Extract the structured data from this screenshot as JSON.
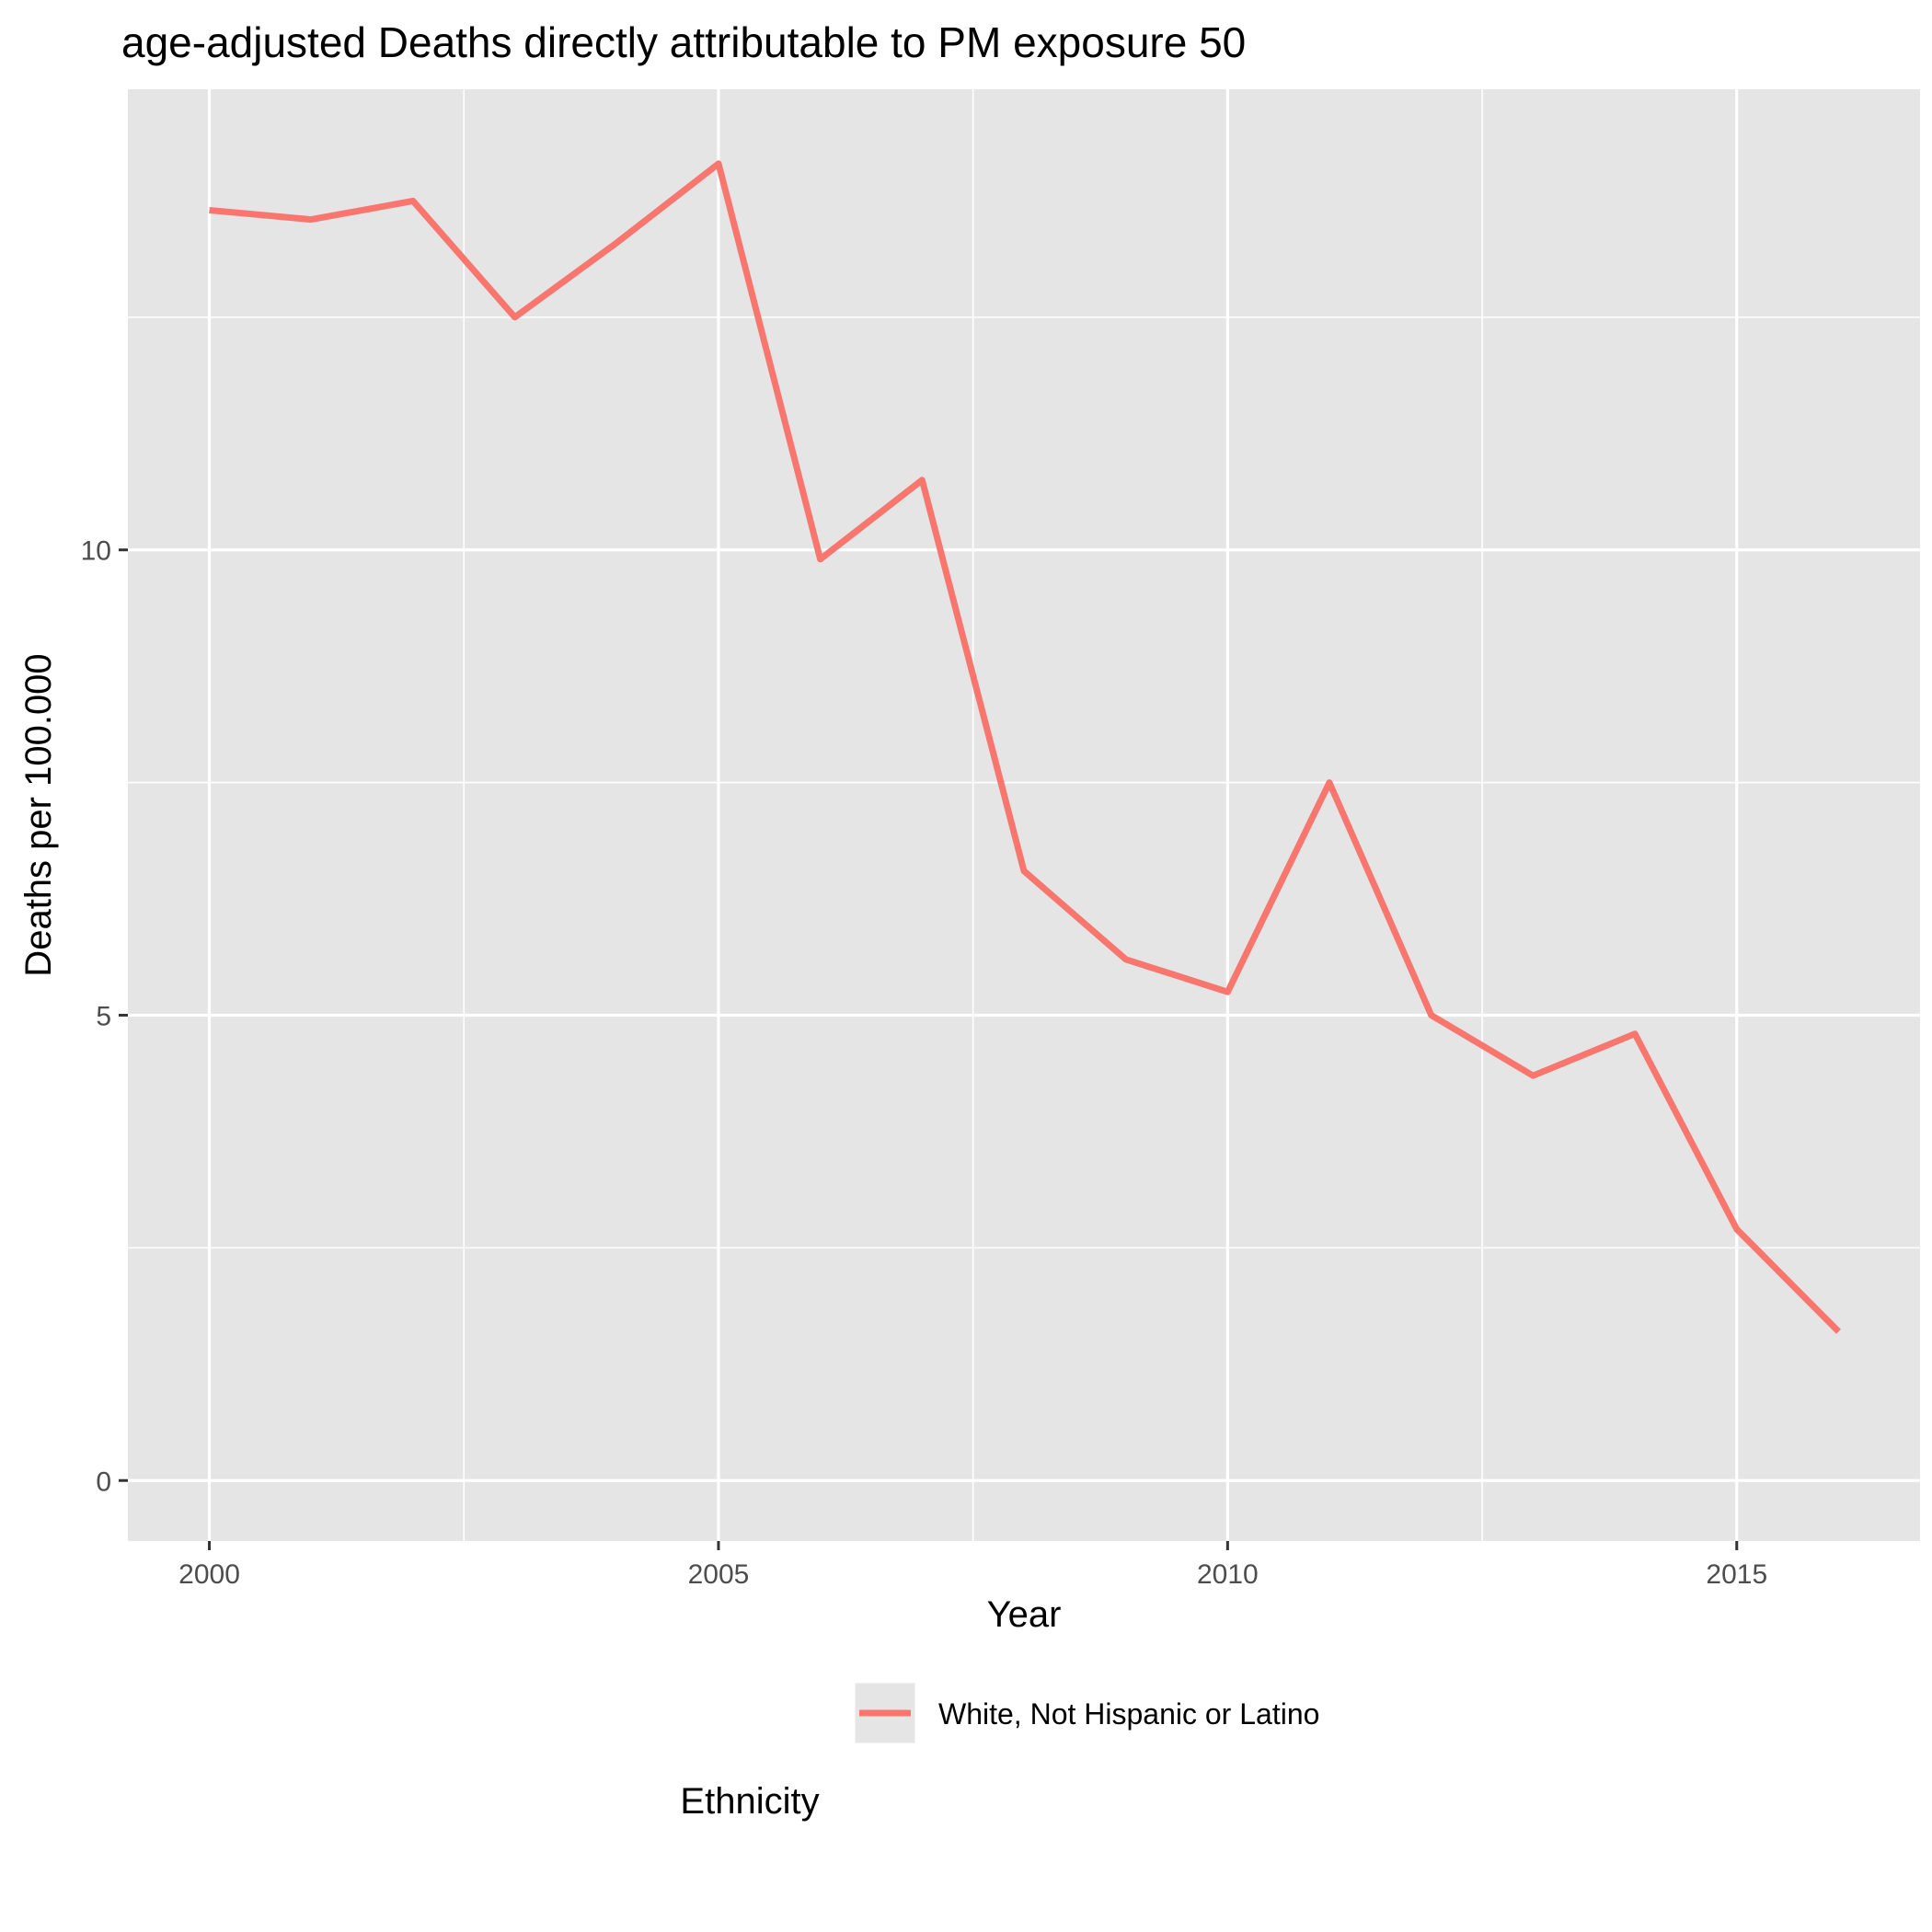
{
  "chart_data": {
    "type": "line",
    "title": "age-adjusted Deaths directly attributable to PM exposure 50",
    "xlabel": "Year",
    "ylabel": "Deaths per 100.000",
    "xlim": [
      1999.2,
      2016.8
    ],
    "ylim": [
      -0.65,
      14.95
    ],
    "x_ticks": [
      2000,
      2005,
      2010,
      2015
    ],
    "y_ticks": [
      0,
      5,
      10
    ],
    "x_minor": [
      2002.5,
      2007.5,
      2012.5
    ],
    "y_minor": [
      2.5,
      7.5,
      12.5
    ],
    "grid": true,
    "legend_title": "Ethnicity",
    "legend_position": "bottom",
    "series": [
      {
        "name": "White, Not Hispanic or Latino",
        "color": "#F8766D",
        "x": [
          2000,
          2001,
          2002,
          2003,
          2004,
          2005,
          2006,
          2007,
          2008,
          2009,
          2010,
          2011,
          2012,
          2013,
          2014,
          2015,
          2016
        ],
        "y": [
          13.65,
          13.55,
          13.75,
          12.5,
          13.3,
          14.15,
          9.9,
          10.75,
          6.55,
          5.6,
          5.25,
          7.5,
          5.0,
          4.35,
          4.8,
          2.7,
          1.6
        ]
      }
    ]
  }
}
